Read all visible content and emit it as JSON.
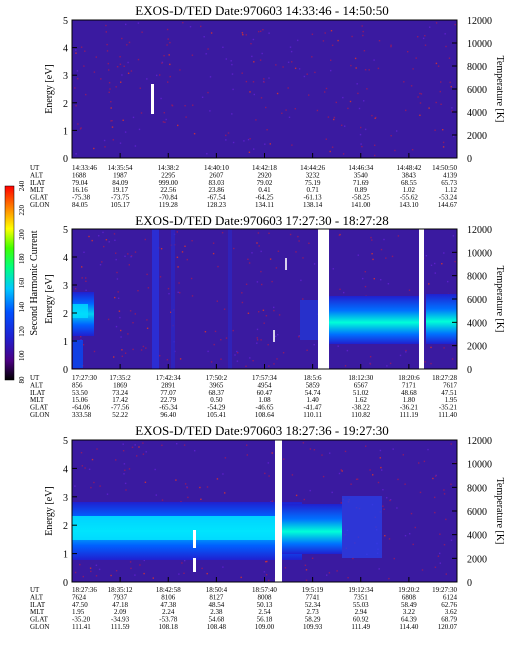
{
  "colorbar": {
    "label": "Second Harmonic Current",
    "ticks": [
      "80",
      "100",
      "120",
      "140",
      "160",
      "180",
      "200",
      "220",
      "240"
    ],
    "colors": [
      "#000000",
      "#4b0082",
      "#2020d0",
      "#0050ff",
      "#00c8ff",
      "#00ff80",
      "#40ff00",
      "#ffff00",
      "#ff8000",
      "#ff0000"
    ]
  },
  "chart_data": [
    {
      "type": "heatmap",
      "title": "EXOS-D/TED   Date:970603  14:33:46 - 14:50:50",
      "ylabel": "Energy [eV]",
      "y2label": "Temperature [K]",
      "yticks": [
        "0",
        "1",
        "2",
        "3",
        "4",
        "5"
      ],
      "y2ticks": [
        "0",
        "2000",
        "4000",
        "6000",
        "8000",
        "10000",
        "12000"
      ],
      "ylim": [
        0,
        5
      ],
      "y2lim": [
        0,
        12000
      ],
      "rows": [
        {
          "label": "UT",
          "values": [
            "14:33:46",
            "14:35:54",
            "14:38:2",
            "14:40:10",
            "14:42:18",
            "14:44:26",
            "14:46:34",
            "14:48:42",
            "14:50:50"
          ]
        },
        {
          "label": "ALT",
          "values": [
            "1688",
            "1987",
            "2295",
            "2607",
            "2920",
            "3232",
            "3540",
            "3843",
            "4139"
          ]
        },
        {
          "label": "ILAT",
          "values": [
            "79.04",
            "84.09",
            "999.00",
            "83.03",
            "79.02",
            "75.19",
            "71.69",
            "68.55",
            "65.73"
          ]
        },
        {
          "label": "MLT",
          "values": [
            "16.16",
            "19.17",
            "22.56",
            "23.86",
            "0.41",
            "0.71",
            "0.89",
            "1.02",
            "1.12"
          ]
        },
        {
          "label": "GLAT",
          "values": [
            "-75.38",
            "-73.75",
            "-70.84",
            "-67.54",
            "-64.25",
            "-61.13",
            "-58.25",
            "-55.62",
            "-53.24"
          ]
        },
        {
          "label": "GLON",
          "values": [
            "84.05",
            "105.17",
            "119.28",
            "128.23",
            "134.11",
            "138.14",
            "141.00",
            "143.10",
            "144.67"
          ]
        }
      ]
    },
    {
      "type": "heatmap",
      "title": "EXOS-D/TED   Date:970603  17:27:30 - 18:27:28",
      "ylabel": "Energy [eV]",
      "y2label": "Temperature [K]",
      "yticks": [
        "0",
        "1",
        "2",
        "3",
        "4",
        "5"
      ],
      "y2ticks": [
        "0",
        "2000",
        "4000",
        "6000",
        "8000",
        "10000",
        "12000"
      ],
      "ylim": [
        0,
        5
      ],
      "y2lim": [
        0,
        12000
      ],
      "rows": [
        {
          "label": "UT",
          "values": [
            "17:27:30",
            "17:35:2",
            "17:42:34",
            "17:50:2",
            "17:57:34",
            "18:5:6",
            "18:12:30",
            "18:20:6",
            "18:27:28"
          ]
        },
        {
          "label": "ALT",
          "values": [
            "856",
            "1869",
            "2891",
            "3965",
            "4954",
            "5859",
            "6567",
            "7171",
            "7617"
          ]
        },
        {
          "label": "ILAT",
          "values": [
            "53.50",
            "73.24",
            "77.07",
            "68.37",
            "60.47",
            "54.74",
            "51.02",
            "48.68",
            "47.51"
          ]
        },
        {
          "label": "MLT",
          "values": [
            "15.06",
            "17.42",
            "22.79",
            "0.50",
            "1.08",
            "1.40",
            "1.62",
            "1.80",
            "1.95"
          ]
        },
        {
          "label": "GLAT",
          "values": [
            "-64.06",
            "-77.56",
            "-65.34",
            "-54.29",
            "-46.65",
            "-41.47",
            "-38.22",
            "-36.21",
            "-35.21"
          ]
        },
        {
          "label": "GLON",
          "values": [
            "333.58",
            "52.22",
            "96.40",
            "105.41",
            "108.64",
            "110.11",
            "110.82",
            "111.19",
            "111.40"
          ]
        }
      ]
    },
    {
      "type": "heatmap",
      "title": "EXOS-D/TED   Date:970603  18:27:36 - 19:27:30",
      "ylabel": "Energy [eV]",
      "y2label": "Temperature [K]",
      "yticks": [
        "0",
        "1",
        "2",
        "3",
        "4",
        "5"
      ],
      "y2ticks": [
        "0",
        "2000",
        "4000",
        "6000",
        "8000",
        "10000",
        "12000"
      ],
      "ylim": [
        0,
        5
      ],
      "y2lim": [
        0,
        12000
      ],
      "rows": [
        {
          "label": "UT",
          "values": [
            "18:27:36",
            "18:35:12",
            "18:42:58",
            "18:50:4",
            "18:57:40",
            "19:5:19",
            "19:12:34",
            "19:20:2",
            "19:27:30"
          ]
        },
        {
          "label": "ALT",
          "values": [
            "7624",
            "7937",
            "8106",
            "8127",
            "8008",
            "7741",
            "7351",
            "6808",
            "6124"
          ]
        },
        {
          "label": "ILAT",
          "values": [
            "47.50",
            "47.18",
            "47.38",
            "48.54",
            "50.13",
            "52.34",
            "55.03",
            "58.49",
            "62.76"
          ]
        },
        {
          "label": "MLT",
          "values": [
            "1.95",
            "2.09",
            "2.24",
            "2.38",
            "2.54",
            "2.73",
            "2.94",
            "3.22",
            "3.62"
          ]
        },
        {
          "label": "GLAT",
          "values": [
            "-35.20",
            "-34.93",
            "-53.78",
            "54.68",
            "56.18",
            "58.29",
            "60.92",
            "64.39",
            "68.79"
          ]
        },
        {
          "label": "GLON",
          "values": [
            "111.41",
            "111.59",
            "108.18",
            "108.48",
            "109.00",
            "109.93",
            "111.49",
            "114.40",
            "120.07"
          ]
        }
      ]
    }
  ]
}
